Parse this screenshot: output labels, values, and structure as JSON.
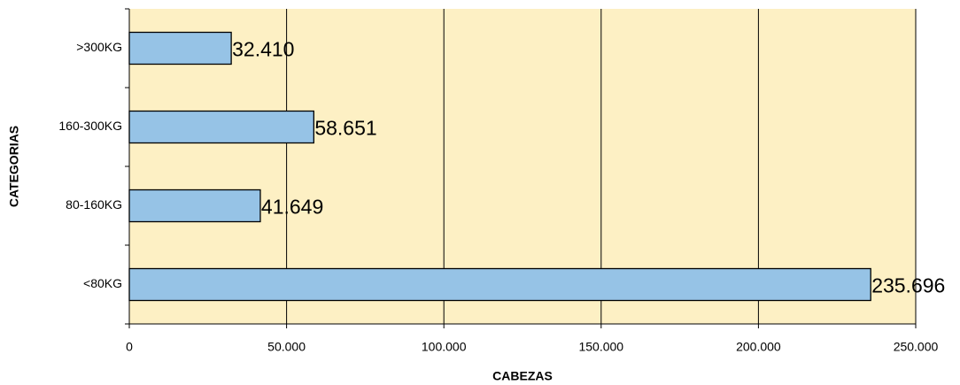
{
  "chart_data": {
    "type": "bar",
    "orientation": "horizontal",
    "x_label": "CABEZAS",
    "y_label": "CATEGORIAS",
    "categories": [
      "<80KG",
      "80-160KG",
      "160-300KG",
      ">300KG"
    ],
    "values": [
      235696,
      41649,
      58651,
      32410
    ],
    "value_labels": [
      "235.696",
      "41.649",
      "58.651",
      "32.410"
    ],
    "color": "#96c3e6",
    "xlim": [
      0,
      250000
    ],
    "xticks": [
      0,
      {
        "value": 50000,
        "label": "50.000"
      },
      {
        "value": 100000,
        "label": "100.000"
      },
      {
        "value": 150000,
        "label": "150.000"
      },
      {
        "value": 200000,
        "label": "200.000"
      },
      {
        "value": 250000,
        "label": "250.000"
      }
    ],
    "grid": true
  }
}
